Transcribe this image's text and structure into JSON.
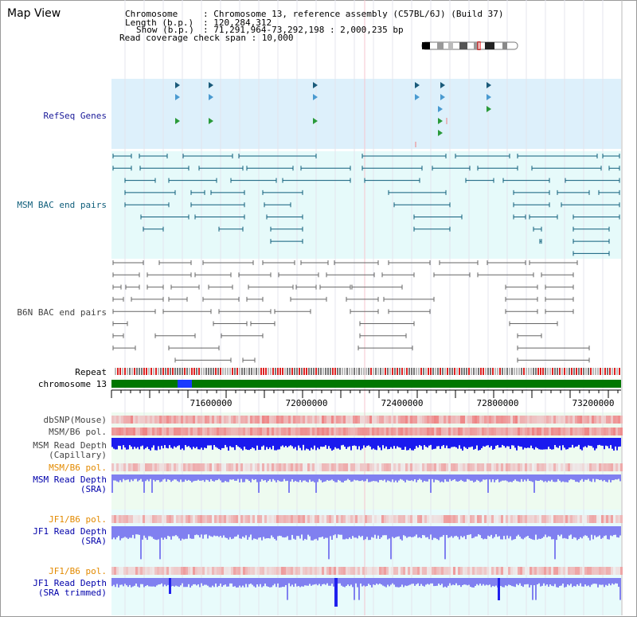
{
  "page": {
    "title": "Map View"
  },
  "info": {
    "chromosome_key": "Chromosome",
    "chromosome_val": ": Chromosome 13, reference assembly (C57BL/6J) (Build 37)",
    "length_key": "Length (b.p.)",
    "length_val": ": 120,284,312",
    "show_key": "Show (b.p.)",
    "show_val": ": 71,291,964-73,292,198 : 2,000,235 bp",
    "coverage_line": "Read coverage check span : 10,000"
  },
  "tracks": {
    "refseq": "RefSeq Genes",
    "msm_bac": "MSM BAC end pairs",
    "b6n_bac": "B6N BAC end pairs",
    "repeat": "Repeat",
    "chromosome": "chromosome 13",
    "dbsnp": "dbSNP(Mouse)",
    "msm_b6_pol_1": "MSM/B6 pol.",
    "msm_read_depth_cap_1": "MSM Read Depth",
    "msm_read_depth_cap_2": "(Capillary)",
    "msm_b6_pol_2": "MSM/B6 pol.",
    "msm_read_depth_sra_1": "MSM Read Depth",
    "msm_read_depth_sra_2": "(SRA)",
    "jf1_b6_pol_1": "JF1/B6 pol.",
    "jf1_read_depth_sra_1": "JF1 Read Depth",
    "jf1_read_depth_sra_2": "(SRA)",
    "jf1_b6_pol_2": "JF1/B6 pol.",
    "jf1_read_depth_trim_1": "JF1 Read Depth",
    "jf1_read_depth_trim_2": "(SRA trimmed)"
  },
  "axis": {
    "ticks": [
      "71600000",
      "72000000",
      "72400000",
      "72800000",
      "73200000"
    ]
  },
  "colors": {
    "refseq_bg": "#ddf0fb",
    "msm_bg": "#e6fafa",
    "depth_bg": "#eefbf0",
    "jf1_bg": "#e8fbfb",
    "msm_feature": "#0e5d7a",
    "b6n_feature": "#555555",
    "chromosome": "#007700",
    "depth_blue": "#1a1aee",
    "depth_light": "#8080f0",
    "snp_red": "#ee3333"
  }
}
